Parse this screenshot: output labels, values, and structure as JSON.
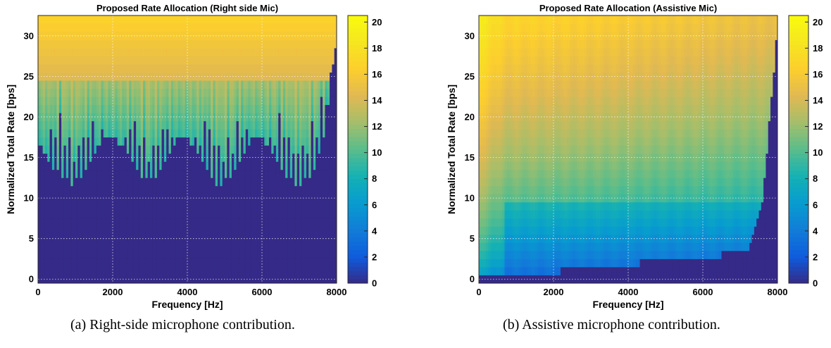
{
  "chart_data": [
    {
      "id": "a",
      "type": "heatmap",
      "title": "Proposed Rate Allocation (Right side Mic)",
      "xlabel": "Frequency [Hz]",
      "ylabel": "Normalized Total Rate [bps]",
      "xlim": [
        0,
        8000
      ],
      "ylim": [
        -0.5,
        32.5
      ],
      "xticks": [
        0,
        2000,
        4000,
        6000,
        8000
      ],
      "yticks": [
        0,
        5,
        10,
        15,
        20,
        25,
        30
      ],
      "grid": true,
      "colorbar": {
        "min": 0,
        "max": 20.5,
        "ticks": [
          0,
          2,
          4,
          6,
          8,
          10,
          12,
          14,
          16,
          18,
          20
        ],
        "colormap": "parula"
      },
      "description_model": {
        "zero_below_threshold": true,
        "threshold_profile_hz_to_bps": [
          [
            0,
            17
          ],
          [
            400,
            14
          ],
          [
            900,
            11.5
          ],
          [
            1200,
            13
          ],
          [
            1700,
            17
          ],
          [
            2000,
            17.5
          ],
          [
            2400,
            15.5
          ],
          [
            2800,
            12
          ],
          [
            3200,
            13
          ],
          [
            3700,
            17
          ],
          [
            4000,
            17.5
          ],
          [
            4400,
            15
          ],
          [
            4800,
            11.5
          ],
          [
            5200,
            13
          ],
          [
            5700,
            17
          ],
          [
            6000,
            17.5
          ],
          [
            6400,
            14.5
          ],
          [
            6900,
            11.5
          ],
          [
            7300,
            12.5
          ],
          [
            7700,
            18
          ],
          [
            8000,
            30
          ]
        ],
        "upper_boundary_bps": [
          [
            0,
            19
          ],
          [
            500,
            24
          ],
          [
            1000,
            20
          ],
          [
            1400,
            24
          ],
          [
            2000,
            19
          ],
          [
            2500,
            24
          ],
          [
            3000,
            20
          ],
          [
            3500,
            24
          ],
          [
            4000,
            19
          ],
          [
            4500,
            24
          ],
          [
            5000,
            20
          ],
          [
            5500,
            24
          ],
          [
            6000,
            19
          ],
          [
            6500,
            24
          ],
          [
            7000,
            20
          ],
          [
            7500,
            24
          ],
          [
            8000,
            32
          ]
        ],
        "value_range_above_threshold": [
          9,
          17
        ]
      }
    },
    {
      "id": "b",
      "type": "heatmap",
      "title": "Proposed Rate Allocation (Assistive Mic)",
      "xlabel": "Frequency [Hz]",
      "ylabel": "Normalized Total Rate [bps]",
      "xlim": [
        0,
        8000
      ],
      "ylim": [
        -0.5,
        32.5
      ],
      "xticks": [
        0,
        2000,
        4000,
        6000,
        8000
      ],
      "yticks": [
        0,
        5,
        10,
        15,
        20,
        25,
        30
      ],
      "grid": true,
      "colorbar": {
        "min": 0,
        "max": 20.5,
        "ticks": [
          0,
          2,
          4,
          6,
          8,
          10,
          12,
          14,
          16,
          18,
          20
        ],
        "colormap": "parula"
      },
      "description_model": {
        "zero_below_bps": [
          [
            0,
            0
          ],
          [
            6500,
            3
          ],
          [
            7200,
            3.5
          ],
          [
            7600,
            10
          ],
          [
            7900,
            25
          ],
          [
            8000,
            32
          ]
        ],
        "value_at_top_bps": [
          [
            0,
            19
          ],
          [
            700,
            17
          ],
          [
            8000,
            15
          ]
        ],
        "value_at_bottom_bps": [
          [
            0,
            5
          ],
          [
            700,
            3
          ],
          [
            8000,
            2
          ]
        ]
      }
    }
  ],
  "captions": {
    "a": "(a) Right-side microphone contribution.",
    "b": "(b) Assistive microphone contribution."
  }
}
